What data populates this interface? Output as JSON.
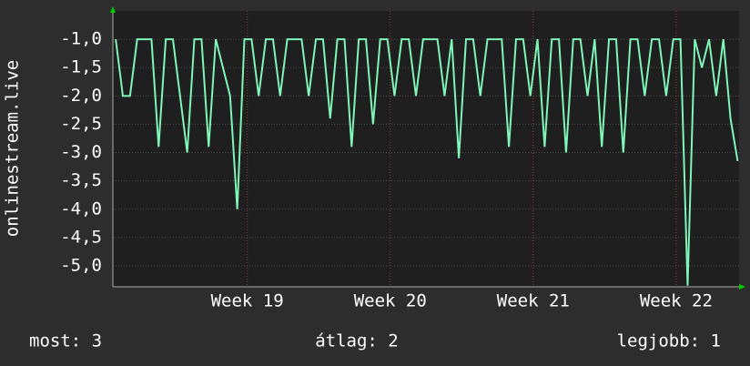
{
  "chart_data": {
    "type": "line",
    "ylabel": "onlinestream.live",
    "x": [
      18.08,
      18.13,
      18.18,
      18.23,
      18.28,
      18.33,
      18.38,
      18.43,
      18.48,
      18.53,
      18.58,
      18.63,
      18.68,
      18.73,
      18.78,
      18.83,
      18.88,
      18.93,
      18.98,
      19.03,
      19.08,
      19.13,
      19.18,
      19.23,
      19.28,
      19.33,
      19.38,
      19.43,
      19.48,
      19.53,
      19.58,
      19.63,
      19.68,
      19.73,
      19.78,
      19.83,
      19.88,
      19.93,
      19.98,
      20.03,
      20.08,
      20.13,
      20.18,
      20.23,
      20.28,
      20.33,
      20.38,
      20.43,
      20.48,
      20.53,
      20.58,
      20.63,
      20.68,
      20.73,
      20.78,
      20.83,
      20.88,
      20.93,
      20.98,
      21.03,
      21.08,
      21.13,
      21.18,
      21.23,
      21.28,
      21.33,
      21.38,
      21.43,
      21.48,
      21.53,
      21.58,
      21.63,
      21.68,
      21.73,
      21.78,
      21.83,
      21.88,
      21.93,
      21.98,
      22.03,
      22.08,
      22.13,
      22.18,
      22.23,
      22.28,
      22.33,
      22.38,
      22.43
    ],
    "series": [
      {
        "color": "#7ff5b8",
        "values": [
          -1,
          -2,
          -2,
          -1,
          -1,
          -1,
          -2.9,
          -1,
          -1,
          -2,
          -3,
          -1,
          -1,
          -2.9,
          -1,
          -1.5,
          -2,
          -4,
          -1,
          -1,
          -2,
          -1,
          -1,
          -2,
          -1,
          -1,
          -1,
          -2,
          -1,
          -1,
          -2.4,
          -1,
          -1,
          -2.9,
          -1,
          -1,
          -2.5,
          -1,
          -1,
          -2,
          -1,
          -1,
          -2,
          -1,
          -1,
          -1,
          -2,
          -1,
          -3.1,
          -1,
          -1,
          -2,
          -1,
          -1,
          -1,
          -2.9,
          -1,
          -1,
          -2,
          -1,
          -2.9,
          -1,
          -1,
          -3,
          -1,
          -1,
          -2,
          -1,
          -2.9,
          -1,
          -1,
          -3,
          -1,
          -1,
          -2,
          -1,
          -1,
          -2,
          -1,
          -1,
          -5.35,
          -1,
          -1.5,
          -1,
          -2,
          -1,
          -2.4,
          -3.15
        ]
      }
    ],
    "xlim": [
      18.06,
      22.44
    ],
    "xticks": [
      {
        "value": 19,
        "label": "Week 19"
      },
      {
        "value": 20,
        "label": "Week 20"
      },
      {
        "value": 21,
        "label": "Week 21"
      },
      {
        "value": 22,
        "label": "Week 22"
      }
    ],
    "ylim": [
      -5.37,
      -0.5
    ],
    "yticks": [
      {
        "value": -1,
        "label": "-1,0"
      },
      {
        "value": -1.5,
        "label": "-1,5"
      },
      {
        "value": -2,
        "label": "-2,0"
      },
      {
        "value": -2.5,
        "label": "-2,5"
      },
      {
        "value": -3,
        "label": "-3,0"
      },
      {
        "value": -3.5,
        "label": "-3,5"
      },
      {
        "value": -4,
        "label": "-4,0"
      },
      {
        "value": -4.5,
        "label": "-4,5"
      },
      {
        "value": -5,
        "label": "-5,0"
      }
    ],
    "grid": true,
    "stats": [
      "most: 3",
      "átlag: 2",
      "legjobb: 1"
    ]
  }
}
